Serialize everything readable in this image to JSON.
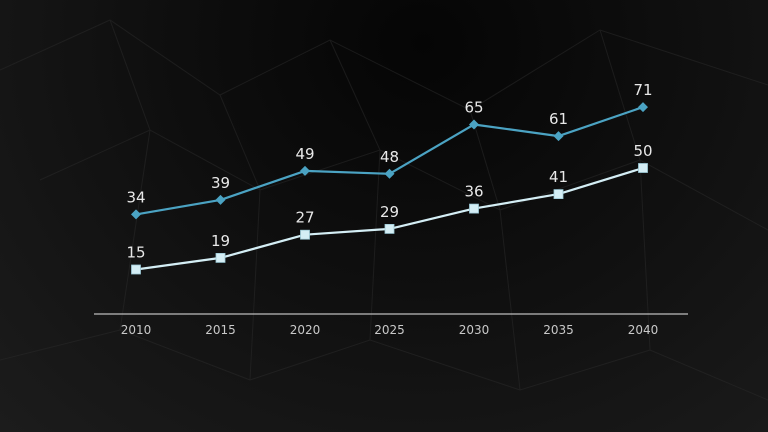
{
  "chart_data": {
    "type": "line",
    "x": [
      "2010",
      "2015",
      "2020",
      "2025",
      "2030",
      "2035",
      "2040"
    ],
    "series": [
      {
        "values": [
          34,
          39,
          49,
          48,
          65,
          61,
          71
        ],
        "color": "#4ba3c3",
        "marker": "diamond"
      },
      {
        "values": [
          15,
          19,
          27,
          29,
          36,
          41,
          50
        ],
        "color": "#d4eef5",
        "marker": "square"
      }
    ],
    "title": "",
    "xlabel": "",
    "ylabel": "",
    "ylim": [
      0,
      80
    ],
    "grid": false,
    "legend": "none",
    "colors": {
      "background": "#111111",
      "axis": "#bdbdbd"
    }
  }
}
